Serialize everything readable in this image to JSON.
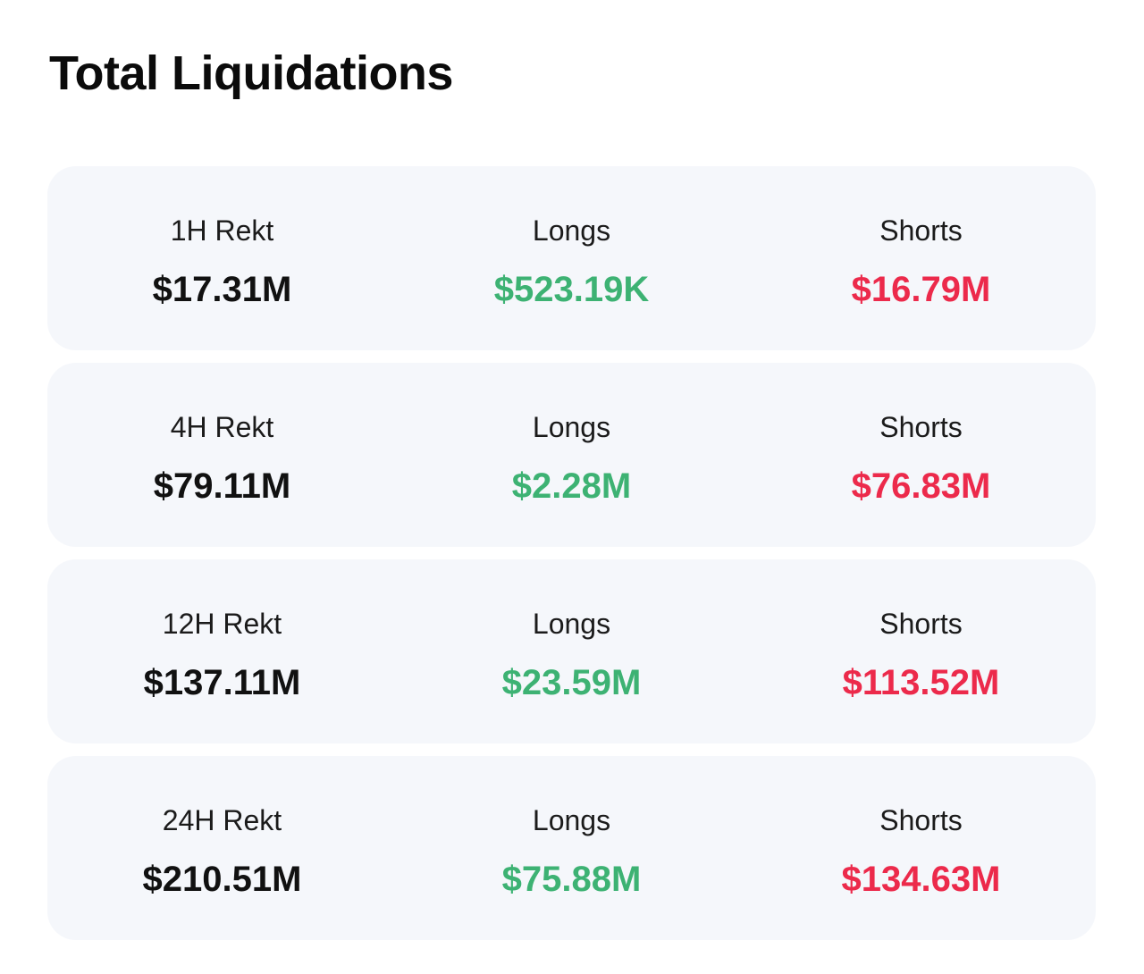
{
  "title": "Total Liquidations",
  "colors": {
    "total": "#111111",
    "long": "#3db273",
    "short": "#ec2a4b",
    "card_background": "#f5f7fb"
  },
  "rows": [
    {
      "period_label": "1H Rekt",
      "total": "$17.31M",
      "longs_label": "Longs",
      "longs": "$523.19K",
      "shorts_label": "Shorts",
      "shorts": "$16.79M"
    },
    {
      "period_label": "4H Rekt",
      "total": "$79.11M",
      "longs_label": "Longs",
      "longs": "$2.28M",
      "shorts_label": "Shorts",
      "shorts": "$76.83M"
    },
    {
      "period_label": "12H Rekt",
      "total": "$137.11M",
      "longs_label": "Longs",
      "longs": "$23.59M",
      "shorts_label": "Shorts",
      "shorts": "$113.52M"
    },
    {
      "period_label": "24H Rekt",
      "total": "$210.51M",
      "longs_label": "Longs",
      "longs": "$75.88M",
      "shorts_label": "Shorts",
      "shorts": "$134.63M"
    }
  ]
}
